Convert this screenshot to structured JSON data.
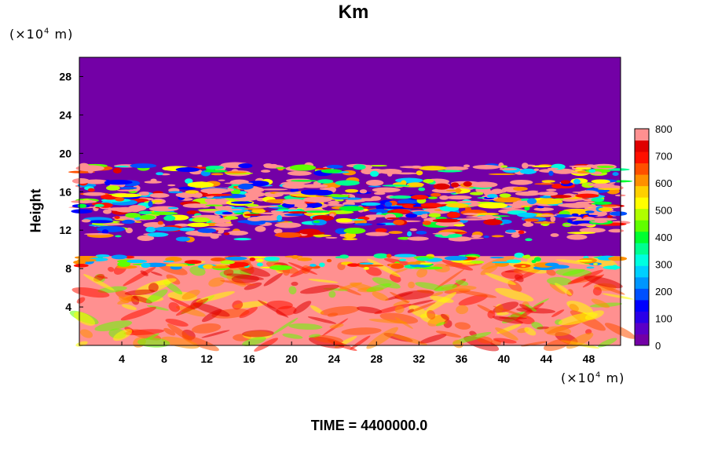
{
  "header": {
    "title": "Km"
  },
  "footer": {
    "time_label": "TIME = 4400000.0"
  },
  "units": {
    "y": "(×10",
    "x": "(×10",
    "exp": "4",
    "suffix": " m)"
  },
  "chart_data": {
    "type": "heatmap",
    "title": "Km",
    "ylabel": "Height",
    "xlabel": "",
    "x_unit": "(×10^4 m)",
    "y_unit": "(×10^4 m)",
    "xlim": [
      0,
      51
    ],
    "ylim": [
      0,
      30
    ],
    "x_ticks": [
      4,
      8,
      12,
      16,
      20,
      24,
      28,
      32,
      36,
      40,
      44,
      48
    ],
    "y_ticks": [
      4,
      8,
      12,
      16,
      20,
      24,
      28
    ],
    "colorbar": {
      "range": [
        0,
        800
      ],
      "ticks": [
        0,
        100,
        200,
        300,
        400,
        500,
        600,
        700,
        800
      ],
      "colors": [
        "#7300a6",
        "#5a00c8",
        "#2a00e8",
        "#0000ff",
        "#0050ff",
        "#0096ff",
        "#00d0ff",
        "#00ffe0",
        "#00ff90",
        "#00ff30",
        "#60ff00",
        "#b0ff00",
        "#ffff00",
        "#ffd000",
        "#ff9000",
        "#ff5000",
        "#ff1000",
        "#e00000",
        "#ff9090"
      ]
    },
    "regions": [
      {
        "description": "upper layer",
        "y_range": [
          19.5,
          30
        ],
        "value": 0
      },
      {
        "description": "turbulent band",
        "y_range": [
          10.5,
          19.5
        ],
        "value": "mixed 0-800"
      },
      {
        "description": "quiet layer",
        "y_range": [
          9.3,
          11
        ],
        "value": 0
      },
      {
        "description": "boundary layer",
        "y_range": [
          0,
          9.3
        ],
        "value": "mostly 800, 400-800"
      }
    ],
    "time": 4400000.0
  }
}
